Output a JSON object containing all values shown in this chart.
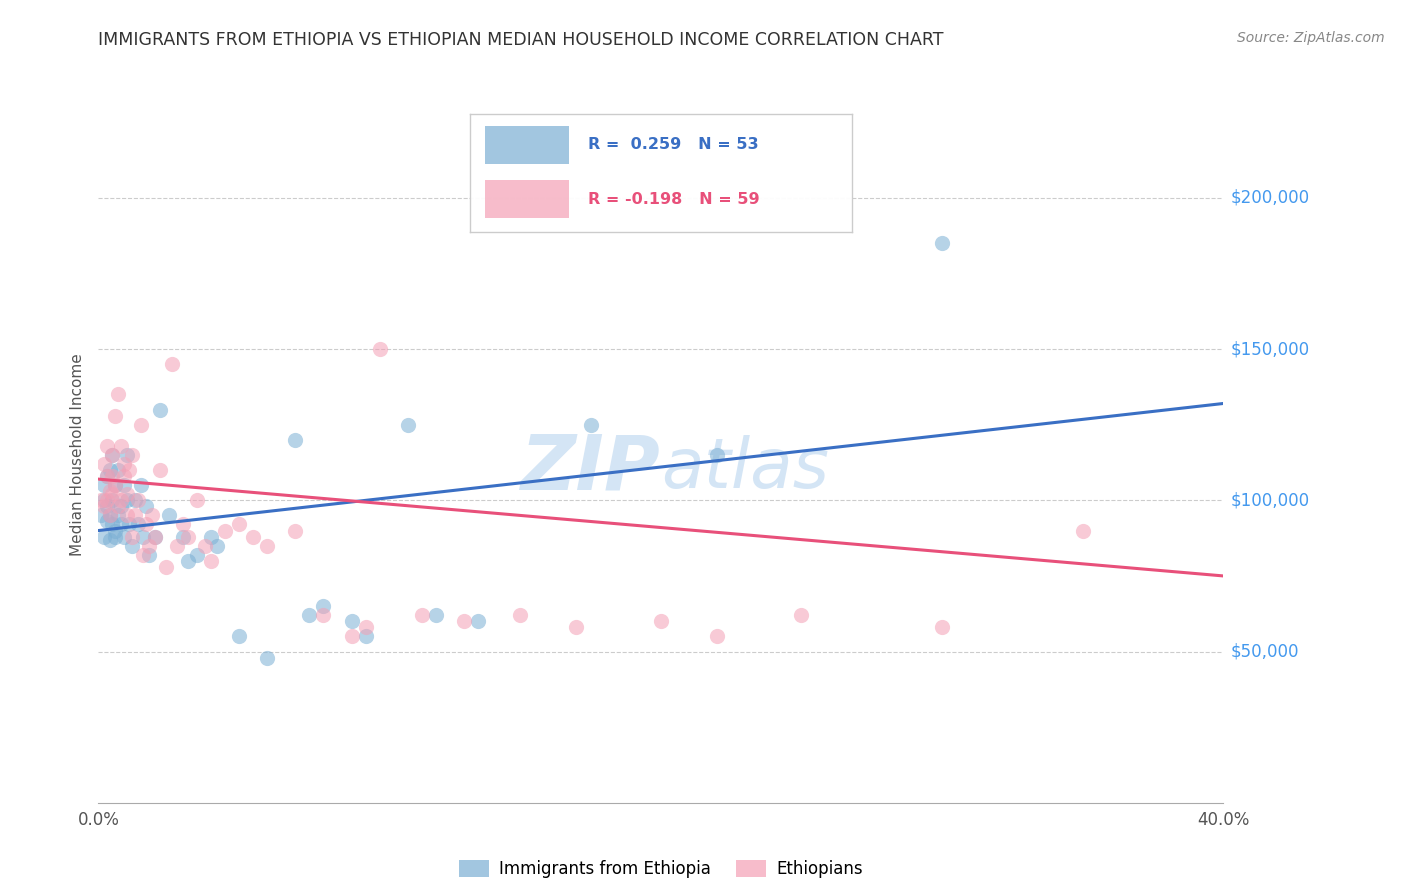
{
  "title": "IMMIGRANTS FROM ETHIOPIA VS ETHIOPIAN MEDIAN HOUSEHOLD INCOME CORRELATION CHART",
  "source": "Source: ZipAtlas.com",
  "ylabel": "Median Household Income",
  "yticks": [
    0,
    50000,
    100000,
    150000,
    200000
  ],
  "xlim": [
    0.0,
    0.4
  ],
  "ylim": [
    0,
    230000
  ],
  "watermark_zip": "ZIP",
  "watermark_atlas": "atlas",
  "blue_color": "#7BAFD4",
  "pink_color": "#F4A0B5",
  "blue_line_color": "#3A6FC4",
  "pink_line_color": "#E8507A",
  "label1": "Immigrants from Ethiopia",
  "label2": "Ethiopians",
  "blue_r": "R =  0.259",
  "blue_n": "N = 53",
  "pink_r": "R = -0.198",
  "pink_n": "N = 59",
  "blue_points_x": [
    0.001,
    0.002,
    0.002,
    0.002,
    0.003,
    0.003,
    0.003,
    0.004,
    0.004,
    0.004,
    0.005,
    0.005,
    0.005,
    0.006,
    0.006,
    0.006,
    0.007,
    0.007,
    0.008,
    0.008,
    0.009,
    0.009,
    0.01,
    0.01,
    0.011,
    0.012,
    0.013,
    0.014,
    0.015,
    0.016,
    0.017,
    0.018,
    0.02,
    0.022,
    0.025,
    0.03,
    0.032,
    0.035,
    0.04,
    0.042,
    0.05,
    0.06,
    0.07,
    0.075,
    0.08,
    0.09,
    0.095,
    0.11,
    0.12,
    0.135,
    0.175,
    0.22,
    0.3
  ],
  "blue_points_y": [
    95000,
    100000,
    88000,
    105000,
    93000,
    98000,
    108000,
    87000,
    95000,
    110000,
    92000,
    100000,
    115000,
    90000,
    105000,
    88000,
    95000,
    110000,
    92000,
    98000,
    105000,
    88000,
    100000,
    115000,
    92000,
    85000,
    100000,
    92000,
    105000,
    88000,
    98000,
    82000,
    88000,
    130000,
    95000,
    88000,
    80000,
    82000,
    88000,
    85000,
    55000,
    48000,
    120000,
    62000,
    65000,
    60000,
    55000,
    125000,
    62000,
    60000,
    125000,
    115000,
    185000
  ],
  "pink_points_x": [
    0.001,
    0.002,
    0.002,
    0.003,
    0.003,
    0.003,
    0.004,
    0.004,
    0.005,
    0.005,
    0.005,
    0.006,
    0.006,
    0.007,
    0.007,
    0.008,
    0.008,
    0.009,
    0.009,
    0.01,
    0.01,
    0.011,
    0.012,
    0.012,
    0.013,
    0.014,
    0.015,
    0.016,
    0.017,
    0.018,
    0.019,
    0.02,
    0.022,
    0.024,
    0.026,
    0.028,
    0.03,
    0.032,
    0.035,
    0.038,
    0.04,
    0.045,
    0.05,
    0.055,
    0.06,
    0.07,
    0.08,
    0.09,
    0.095,
    0.1,
    0.115,
    0.13,
    0.15,
    0.17,
    0.2,
    0.22,
    0.25,
    0.3,
    0.35
  ],
  "pink_points_y": [
    100000,
    112000,
    98000,
    108000,
    100000,
    118000,
    103000,
    95000,
    108000,
    115000,
    102000,
    128000,
    105000,
    135000,
    98000,
    118000,
    100000,
    112000,
    108000,
    95000,
    102000,
    110000,
    88000,
    115000,
    95000,
    100000,
    125000,
    82000,
    92000,
    85000,
    95000,
    88000,
    110000,
    78000,
    145000,
    85000,
    92000,
    88000,
    100000,
    85000,
    80000,
    90000,
    92000,
    88000,
    85000,
    90000,
    62000,
    55000,
    58000,
    150000,
    62000,
    60000,
    62000,
    58000,
    60000,
    55000,
    62000,
    58000,
    90000
  ]
}
